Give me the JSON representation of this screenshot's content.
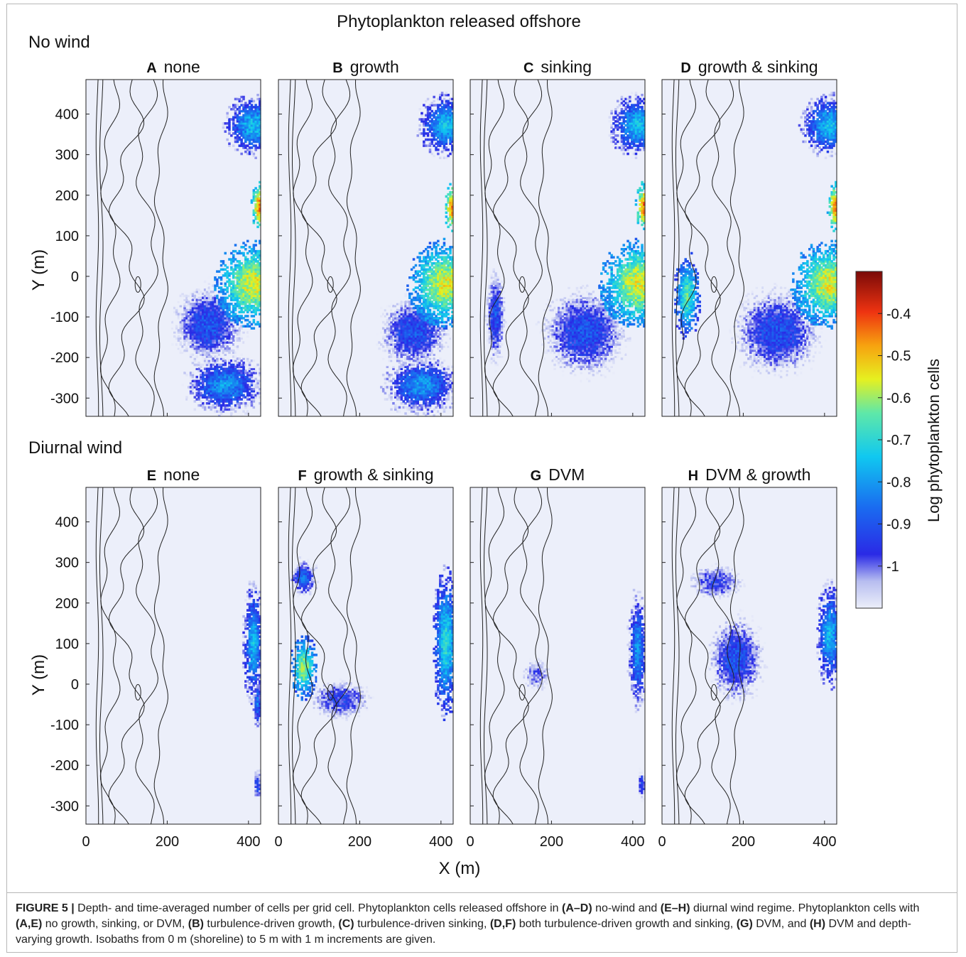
{
  "figure": {
    "main_title": "Phytoplankton released offshore",
    "row_titles": [
      "No wind",
      "Diurnal wind"
    ],
    "colorbar_label": "Log phytoplankton cells",
    "xlabel": "X (m)",
    "ylabel": "Y (m)",
    "panels": [
      {
        "letter": "A",
        "title": "none"
      },
      {
        "letter": "B",
        "title": "growth"
      },
      {
        "letter": "C",
        "title": "sinking"
      },
      {
        "letter": "D",
        "title": "growth & sinking"
      },
      {
        "letter": "E",
        "title": "none"
      },
      {
        "letter": "F",
        "title": "growth & sinking"
      },
      {
        "letter": "G",
        "title": "DVM"
      },
      {
        "letter": "H",
        "title": "DVM & growth"
      }
    ],
    "xticks": [
      "0",
      "200",
      "400"
    ],
    "yticks": [
      "400",
      "300",
      "200",
      "100",
      "0",
      "-100",
      "-200",
      "-300"
    ],
    "cticks": [
      "-0.4",
      "-0.5",
      "-0.6",
      "-0.7",
      "-0.8",
      "-0.9",
      "-1"
    ]
  },
  "chart_data": {
    "type": "heatmap",
    "title": "Phytoplankton released offshore",
    "xlabel": "X (m)",
    "ylabel": "Y (m)",
    "xlim": [
      0,
      430
    ],
    "ylim": [
      -345,
      485
    ],
    "clim": [
      -1.1,
      -0.3
    ],
    "colorbar_label": "Log phytoplankton cells",
    "colormap": "jet",
    "rows": [
      "No wind",
      "Diurnal wind"
    ],
    "panels": [
      "A none",
      "B growth",
      "C sinking",
      "D growth & sinking",
      "E none",
      "F growth & sinking",
      "G DVM",
      "H DVM & growth"
    ],
    "approx_hotspots": [
      {
        "panel": "A",
        "blobs": [
          [
            410,
            370,
            55,
            60,
            -0.75
          ],
          [
            425,
            170,
            15,
            45,
            -0.45
          ],
          [
            410,
            -20,
            70,
            80,
            -0.55
          ],
          [
            300,
            -120,
            90,
            100,
            -0.9
          ],
          [
            340,
            -270,
            80,
            60,
            -0.8
          ]
        ]
      },
      {
        "panel": "B",
        "blobs": [
          [
            410,
            370,
            55,
            60,
            -0.75
          ],
          [
            425,
            170,
            15,
            45,
            -0.45
          ],
          [
            410,
            -20,
            70,
            80,
            -0.55
          ],
          [
            330,
            -140,
            90,
            90,
            -0.9
          ],
          [
            350,
            -270,
            80,
            60,
            -0.8
          ]
        ]
      },
      {
        "panel": "C",
        "blobs": [
          [
            410,
            370,
            55,
            60,
            -0.75
          ],
          [
            425,
            170,
            15,
            45,
            -0.45
          ],
          [
            410,
            -20,
            70,
            80,
            -0.55
          ],
          [
            280,
            -140,
            110,
            110,
            -0.9
          ],
          [
            60,
            -100,
            25,
            120,
            -0.9
          ]
        ]
      },
      {
        "panel": "D",
        "blobs": [
          [
            410,
            370,
            55,
            60,
            -0.75
          ],
          [
            425,
            170,
            15,
            45,
            -0.45
          ],
          [
            410,
            -20,
            70,
            80,
            -0.55
          ],
          [
            280,
            -140,
            110,
            110,
            -0.9
          ],
          [
            60,
            -50,
            25,
            80,
            -0.65
          ]
        ]
      },
      {
        "panel": "E",
        "blobs": [
          [
            410,
            100,
            20,
            120,
            -0.75
          ],
          [
            420,
            -50,
            10,
            60,
            -0.85
          ],
          [
            420,
            -250,
            10,
            40,
            -0.9
          ]
        ]
      },
      {
        "panel": "F",
        "blobs": [
          [
            410,
            100,
            25,
            140,
            -0.7
          ],
          [
            60,
            40,
            25,
            60,
            -0.6
          ],
          [
            60,
            260,
            30,
            40,
            -0.85
          ],
          [
            150,
            -40,
            90,
            60,
            -0.95
          ]
        ]
      },
      {
        "panel": "G",
        "blobs": [
          [
            410,
            80,
            20,
            120,
            -0.8
          ],
          [
            420,
            -250,
            10,
            40,
            -0.9
          ],
          [
            160,
            20,
            50,
            60,
            -1.0
          ]
        ]
      },
      {
        "panel": "H",
        "blobs": [
          [
            410,
            120,
            25,
            100,
            -0.75
          ],
          [
            180,
            60,
            70,
            110,
            -0.9
          ],
          [
            130,
            250,
            80,
            50,
            -0.95
          ]
        ]
      }
    ]
  },
  "caption": {
    "lead": "FIGURE 5 |",
    "segments": [
      {
        "text": " Depth- and time-averaged number of cells per grid cell. Phytoplankton cells released offshore in ",
        "bold": false
      },
      {
        "text": "(A–D)",
        "bold": true
      },
      {
        "text": " no-wind and ",
        "bold": false
      },
      {
        "text": "(E–H)",
        "bold": true
      },
      {
        "text": " diurnal wind regime. Phytoplankton cells with ",
        "bold": false
      },
      {
        "text": "(A,E)",
        "bold": true
      },
      {
        "text": " no growth, sinking, or DVM, ",
        "bold": false
      },
      {
        "text": "(B)",
        "bold": true
      },
      {
        "text": " turbulence-driven growth, ",
        "bold": false
      },
      {
        "text": "(C)",
        "bold": true
      },
      {
        "text": " turbulence-driven sinking, ",
        "bold": false
      },
      {
        "text": "(D,F)",
        "bold": true
      },
      {
        "text": " both turbulence-driven growth and sinking, ",
        "bold": false
      },
      {
        "text": "(G)",
        "bold": true
      },
      {
        "text": " DVM, and ",
        "bold": false
      },
      {
        "text": "(H)",
        "bold": true
      },
      {
        "text": " DVM and depth-varying growth. Isobaths from 0 m (shoreline) to 5 m with 1 m increments are given.",
        "bold": false
      }
    ]
  }
}
